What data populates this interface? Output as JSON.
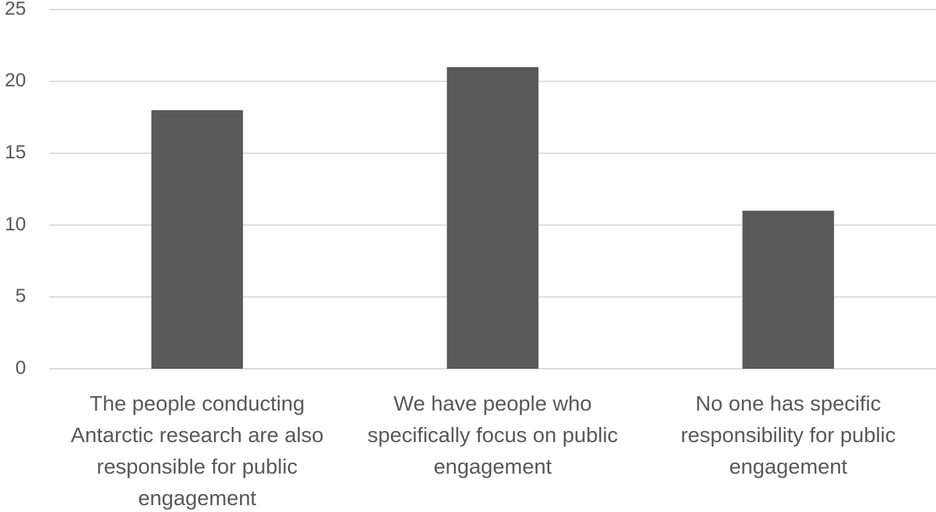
{
  "chart_data": {
    "type": "bar",
    "categories": [
      "The people conducting Antarctic research are also responsible for public engagement",
      "We have people who specifically focus on public engagement",
      "No one has specific responsibility for public engagement"
    ],
    "values": [
      18,
      21,
      11
    ],
    "color": "#595959",
    "ylim": [
      0,
      25
    ],
    "yticks": [
      0,
      5,
      10,
      15,
      20,
      25
    ],
    "grid": true
  }
}
